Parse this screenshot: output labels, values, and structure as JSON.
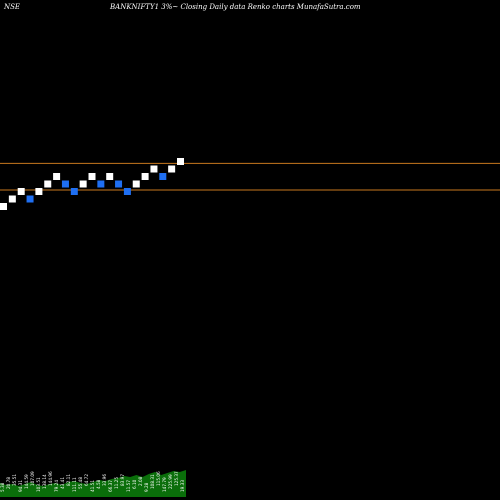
{
  "header": {
    "exchange": "NSE",
    "title": "BANKNIFTY1 3%~  Closing Daily data  Renko  charts MunafaSutra.com"
  },
  "colors": {
    "background": "#000000",
    "up_brick": "#ffffff",
    "down_brick": "#1f6ff2",
    "level_line": "#c8781e",
    "volume": "#0a6e0a",
    "volume_label": "#ffffff"
  },
  "chart_data": {
    "type": "renko",
    "title": "BANKNIFTY1 3%~ Closing Daily data Renko charts MunafaSutra.com",
    "brick_size_pct": 3,
    "levels": [
      0,
      1,
      2,
      1,
      2,
      3,
      4,
      3,
      2,
      3,
      4,
      3,
      4,
      3,
      2,
      3,
      4,
      5,
      4,
      5,
      6
    ],
    "directions": [
      "up",
      "up",
      "up",
      "down",
      "up",
      "up",
      "up",
      "down",
      "down",
      "up",
      "up",
      "down",
      "up",
      "down",
      "down",
      "up",
      "up",
      "up",
      "down",
      "up",
      "up"
    ],
    "horizontal_lines": [
      5.75,
      2.2
    ],
    "volume": {
      "values": [
        14,
        12,
        13,
        11,
        13,
        15,
        12,
        11,
        13,
        14,
        12,
        15,
        16,
        14,
        13,
        15,
        17,
        16,
        18,
        19,
        21,
        20,
        22,
        20,
        23,
        25,
        22,
        24,
        26,
        25,
        27
      ],
      "labels": [
        "5.38",
        "20.78",
        "35.51",
        "94.31",
        "144.59",
        "107.09",
        "103.51",
        "138.14",
        "144.96",
        "79.24",
        "43.41",
        "82.11",
        "111.11",
        "55.48",
        "64.72",
        "41.51",
        "4.58",
        "33.96",
        "66.37",
        "11.25",
        "83.97",
        "11.57",
        "6.10",
        "2.08",
        "9.28",
        "108.31",
        "115.06",
        "147.79",
        "225.99",
        "125.37",
        "19.33"
      ]
    }
  }
}
